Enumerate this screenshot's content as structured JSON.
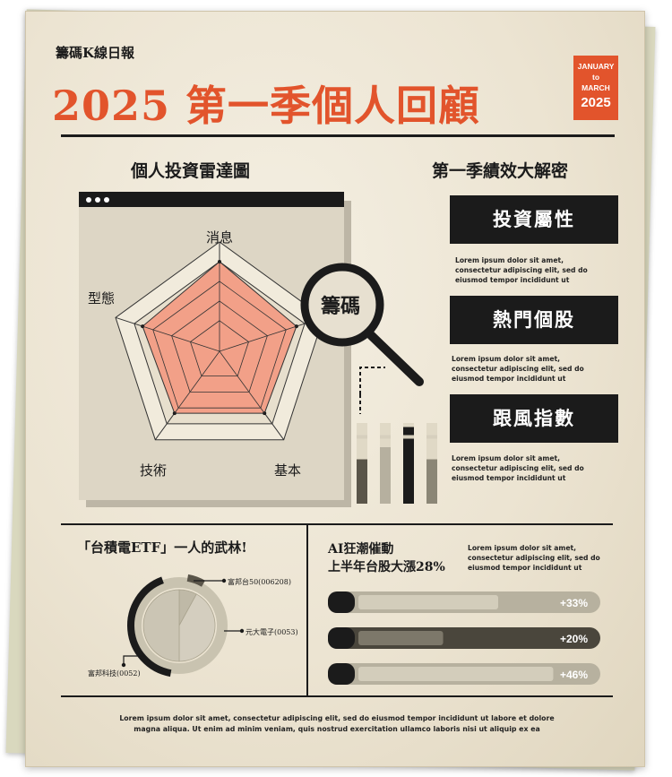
{
  "header": {
    "kicker": "籌碼K線日報",
    "title": "2025 第一季個人回顧",
    "date_line1": "JANUARY",
    "date_line2": "to",
    "date_line3": "MARCH",
    "date_year": "2025"
  },
  "radar_section": {
    "title": "個人投資雷達圖",
    "magnifier_text": "籌碼"
  },
  "right_section": {
    "title": "第一季績效大解密",
    "boxes": [
      {
        "label": "投資屬性",
        "text": [
          "Lorem ipsum dolor sit amet,",
          "consectetur adipiscing elit, sed do",
          "eiusmod tempor incididunt ut"
        ]
      },
      {
        "label": "熱門個股",
        "text": [
          "Lorem ipsum dolor sit amet,",
          "consectetur adipiscing elit, sed do",
          "eiusmod tempor incididunt ut"
        ]
      },
      {
        "label": "跟風指數",
        "text": [
          "Lorem ipsum dolor sit amet,",
          "consectetur adipiscing elit, sed do",
          "eiusmod tempor incididunt ut"
        ]
      }
    ]
  },
  "etf_section": {
    "title": "「台積電ETF」一人的武林!"
  },
  "ai_section": {
    "title_line1": "AI狂潮催動",
    "title_line2": "上半年台股大漲28%",
    "text": [
      "Lorem ipsum dolor sit amet,",
      "consectetur adipiscing elit, sed do",
      "eiusmod tempor incididunt ut"
    ]
  },
  "footer": {
    "line1": "Lorem ipsum dolor sit amet, consectetur adipiscing elit, sed do eiusmod tempor incididunt ut labore et dolore",
    "line2": "magna aliqua. Ut enim ad minim veniam, quis nostrud exercitation ullamco laboris nisi ut aliquip ex ea"
  },
  "colors": {
    "accent": "#e2542c",
    "radar_fill": "#f2a088",
    "ink": "#1b1b1b",
    "paper": "#ece4d2"
  },
  "chart_data": [
    {
      "type": "radar",
      "axes": [
        "消息",
        "型態",
        "技術",
        "基本"
      ],
      "axis_count": 5,
      "values": [
        0.82,
        0.74,
        0.7,
        0.7,
        0.74
      ],
      "max": 1
    },
    {
      "type": "bar",
      "values": [
        0.55,
        0.7,
        0.95,
        0.55
      ],
      "colors": [
        "#5a5549",
        "#b6b09f",
        "#1b1b1b",
        "#8b8676"
      ]
    },
    {
      "type": "pie",
      "slices": [
        {
          "label": "富邦台50(006208)",
          "value": 8
        },
        {
          "label": "元大電子(0053)",
          "value": 42
        },
        {
          "label": "富邦科技(0052)",
          "value": 50
        }
      ]
    },
    {
      "type": "bar",
      "orientation": "horizontal",
      "bars": [
        {
          "label": "+33%",
          "value": 33
        },
        {
          "label": "+20%",
          "value": 20
        },
        {
          "label": "+46%",
          "value": 46
        }
      ]
    }
  ]
}
